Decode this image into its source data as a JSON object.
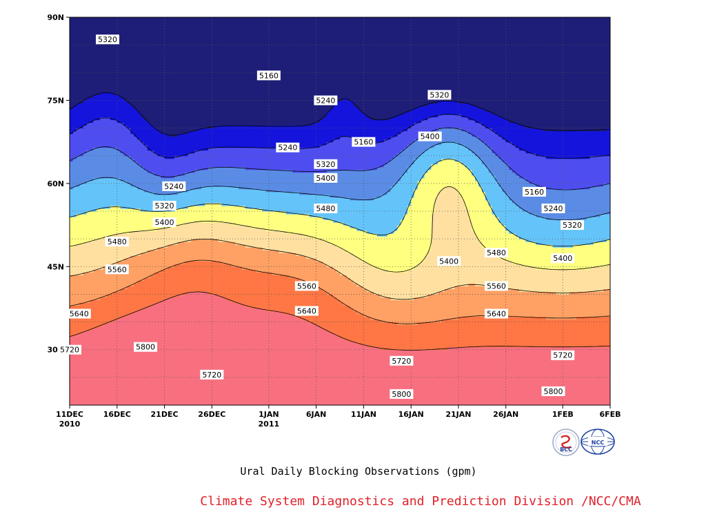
{
  "chart_data": {
    "type": "contour",
    "title": "",
    "subtitle": "Ural Daily Blocking Observations (gpm)",
    "credit": "Climate System Diagnostics and Prediction Division /NCC/CMA",
    "credit_color": "#e0202a",
    "xlabel": "",
    "ylabel": "",
    "x_ticks": [
      {
        "date": "2010-12-11",
        "label": "11DEC",
        "label2": "2010"
      },
      {
        "date": "2010-12-16",
        "label": "16DEC",
        "label2": ""
      },
      {
        "date": "2010-12-21",
        "label": "21DEC",
        "label2": ""
      },
      {
        "date": "2010-12-26",
        "label": "26DEC",
        "label2": ""
      },
      {
        "date": "2011-01-01",
        "label": "1JAN",
        "label2": "2011"
      },
      {
        "date": "2011-01-06",
        "label": "6JAN",
        "label2": ""
      },
      {
        "date": "2011-01-11",
        "label": "11JAN",
        "label2": ""
      },
      {
        "date": "2011-01-16",
        "label": "16JAN",
        "label2": ""
      },
      {
        "date": "2011-01-21",
        "label": "21JAN",
        "label2": ""
      },
      {
        "date": "2011-01-26",
        "label": "26JAN",
        "label2": ""
      },
      {
        "date": "2011-02-01",
        "label": "1FEB",
        "label2": ""
      },
      {
        "date": "2011-02-06",
        "label": "6FEB",
        "label2": ""
      }
    ],
    "y_ticks": [
      {
        "value": 30,
        "label": "30N"
      },
      {
        "value": 45,
        "label": "45N"
      },
      {
        "value": 60,
        "label": "60N"
      },
      {
        "value": 75,
        "label": "75N"
      },
      {
        "value": 90,
        "label": "90N"
      }
    ],
    "xlim": [
      "2010-12-11",
      "2011-02-06"
    ],
    "ylim": [
      20,
      90
    ],
    "grid": "dotted",
    "contour_levels": [
      5160,
      5240,
      5320,
      5400,
      5480,
      5560,
      5640,
      5720,
      5800
    ],
    "band_colors": [
      "#1e1e78",
      "#1414dc",
      "#4e4ef0",
      "#5a8ce6",
      "#64c4fa",
      "#ffff80",
      "#ffe0a0",
      "#ffa064",
      "#ff7744",
      "#f87080"
    ],
    "contour_labels": [
      {
        "value": "5320",
        "date": "2010-12-15",
        "lat": 86
      },
      {
        "value": "5160",
        "date": "2011-01-01",
        "lat": 79.5
      },
      {
        "value": "5240",
        "date": "2011-01-07",
        "lat": 75
      },
      {
        "value": "5240",
        "date": "2011-01-03",
        "lat": 66.5
      },
      {
        "value": "5160",
        "date": "2011-01-11",
        "lat": 67.5
      },
      {
        "value": "5320",
        "date": "2011-01-07",
        "lat": 63.5
      },
      {
        "value": "5400",
        "date": "2011-01-07",
        "lat": 61
      },
      {
        "value": "5480",
        "date": "2011-01-07",
        "lat": 55.5
      },
      {
        "value": "5240",
        "date": "2010-12-22",
        "lat": 59.5
      },
      {
        "value": "5320",
        "date": "2010-12-21",
        "lat": 56
      },
      {
        "value": "5400",
        "date": "2010-12-21",
        "lat": 53
      },
      {
        "value": "5480",
        "date": "2010-12-16",
        "lat": 49.5
      },
      {
        "value": "5560",
        "date": "2010-12-16",
        "lat": 44.5
      },
      {
        "value": "5640",
        "date": "2010-12-12",
        "lat": 36.5
      },
      {
        "value": "5720",
        "date": "2010-12-11",
        "lat": 30
      },
      {
        "value": "5800",
        "date": "2010-12-19",
        "lat": 30.5
      },
      {
        "value": "5720",
        "date": "2010-12-26",
        "lat": 25.5
      },
      {
        "value": "5560",
        "date": "2011-01-05",
        "lat": 41.5
      },
      {
        "value": "5640",
        "date": "2011-01-05",
        "lat": 37
      },
      {
        "value": "5720",
        "date": "2011-01-15",
        "lat": 28
      },
      {
        "value": "5800",
        "date": "2011-01-15",
        "lat": 22
      },
      {
        "value": "5320",
        "date": "2011-01-19",
        "lat": 76
      },
      {
        "value": "5400",
        "date": "2011-01-18",
        "lat": 68.5
      },
      {
        "value": "5400",
        "date": "2011-01-20",
        "lat": 46
      },
      {
        "value": "5480",
        "date": "2011-01-25",
        "lat": 47.5
      },
      {
        "value": "5560",
        "date": "2011-01-25",
        "lat": 41.5
      },
      {
        "value": "5640",
        "date": "2011-01-25",
        "lat": 36.5
      },
      {
        "value": "5160",
        "date": "2011-01-29",
        "lat": 58.5
      },
      {
        "value": "5240",
        "date": "2011-01-31",
        "lat": 55.5
      },
      {
        "value": "5320",
        "date": "2011-02-02",
        "lat": 52.5
      },
      {
        "value": "5400",
        "date": "2011-02-01",
        "lat": 46.5
      },
      {
        "value": "5720",
        "date": "2011-02-01",
        "lat": 29
      },
      {
        "value": "5800",
        "date": "2011-01-31",
        "lat": 22.5
      }
    ],
    "logos": [
      {
        "name": "bcc-logo",
        "text": "BCC",
        "color": "#1a3fa0"
      },
      {
        "name": "ncc-logo",
        "text": "NCC",
        "color": "#1a3fa0"
      }
    ]
  }
}
